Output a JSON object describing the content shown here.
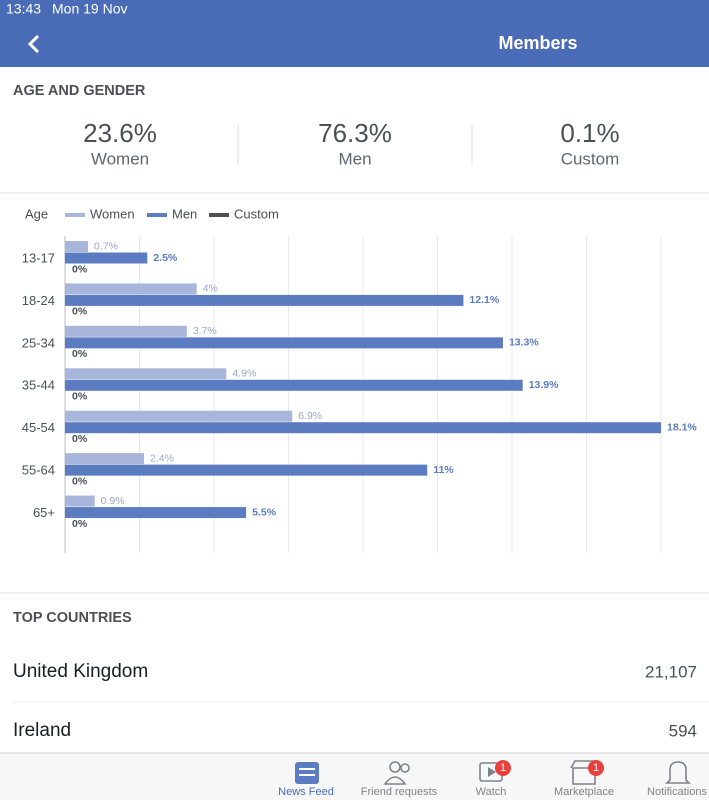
{
  "status_bar": {
    "time": "13:43",
    "date": "Mon 19 Nov"
  },
  "header": {
    "title": "Members"
  },
  "age_and_gender": {
    "heading": "AGE AND GENDER",
    "summary": [
      {
        "value": "23.6%",
        "label": "Women"
      },
      {
        "value": "76.3%",
        "label": "Men"
      },
      {
        "value": "0.1%",
        "label": "Custom"
      }
    ]
  },
  "chart_data": {
    "type": "bar",
    "orientation": "horizontal",
    "axis_label": "Age",
    "categories": [
      "13-17",
      "18-24",
      "25-34",
      "35-44",
      "45-54",
      "55-64",
      "65+"
    ],
    "series": [
      {
        "name": "Women",
        "color": "#a7b6da",
        "values": [
          0.7,
          4,
          3.7,
          4.9,
          6.9,
          2.4,
          0.9
        ],
        "value_labels": [
          "0.7%",
          "4%",
          "3.7%",
          "4.9%",
          "6.9%",
          "2.4%",
          "0.9%"
        ]
      },
      {
        "name": "Men",
        "color": "#5b7cc0",
        "values": [
          2.5,
          12.1,
          13.3,
          13.9,
          18.1,
          11,
          5.5
        ],
        "value_labels": [
          "2.5%",
          "12.1%",
          "13.3%",
          "13.9%",
          "18.1%",
          "11%",
          "5.5%"
        ]
      },
      {
        "name": "Custom",
        "color": "#4b4f58",
        "values": [
          0,
          0,
          0,
          0,
          0,
          0,
          0
        ],
        "value_labels": [
          "0%",
          "0%",
          "0%",
          "0%",
          "0%",
          "0%",
          "0%"
        ]
      }
    ],
    "xlim": [
      0,
      18.1
    ],
    "grid": true
  },
  "top_countries": {
    "heading": "TOP COUNTRIES",
    "rows": [
      {
        "country": "United Kingdom",
        "members": "21,107"
      },
      {
        "country": "Ireland",
        "members": "594"
      }
    ]
  },
  "tab_bar": {
    "tabs": [
      {
        "label": "News Feed"
      },
      {
        "label": "Friend requests"
      },
      {
        "label": "Watch",
        "badge": "1"
      },
      {
        "label": "Marketplace",
        "badge": "1"
      },
      {
        "label": "Notifications"
      }
    ]
  }
}
